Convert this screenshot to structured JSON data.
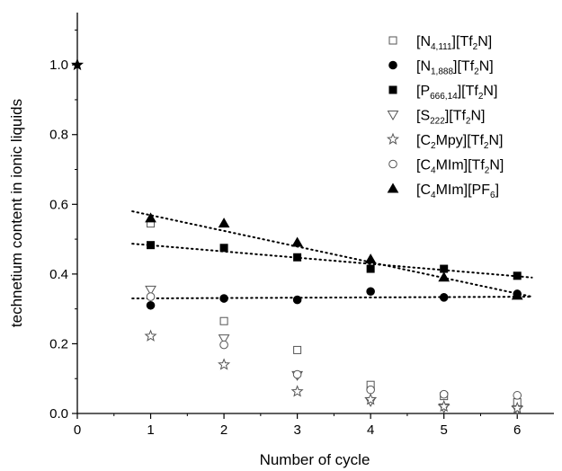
{
  "chart_data": {
    "type": "scatter",
    "title": "",
    "xlabel": "Number of cycle",
    "ylabel": "technetium content in ionic liquids",
    "xlim": [
      0,
      6.5
    ],
    "ylim": [
      0,
      1.15
    ],
    "xticks": [
      "0",
      "1",
      "2",
      "3",
      "4",
      "5",
      "6"
    ],
    "yticks": [
      "0.0",
      "0.2",
      "0.4",
      "0.6",
      "0.8",
      "1.0"
    ],
    "grid": false,
    "legend_position": "top-right",
    "origin_point": {
      "x": 0,
      "y": 1.0,
      "marker": "star-filled"
    },
    "series": [
      {
        "label_parts": [
          [
            "[N",
            ""
          ],
          [
            "4,111",
            "sub"
          ],
          [
            "][Tf",
            ""
          ],
          [
            "2",
            "sub"
          ],
          [
            "N]",
            ""
          ]
        ],
        "marker": "square-open",
        "x": [
          1,
          2,
          3,
          4,
          5,
          6
        ],
        "y": [
          0.545,
          0.265,
          0.182,
          0.082,
          0.05,
          0.032
        ]
      },
      {
        "label_parts": [
          [
            "[N",
            ""
          ],
          [
            "1,888",
            "sub"
          ],
          [
            "][Tf",
            ""
          ],
          [
            "2",
            "sub"
          ],
          [
            "N]",
            ""
          ]
        ],
        "marker": "circle-filled",
        "x": [
          1,
          2,
          3,
          4,
          5,
          6
        ],
        "y": [
          0.31,
          0.33,
          0.326,
          0.35,
          0.333,
          0.343
        ]
      },
      {
        "label_parts": [
          [
            "[P",
            ""
          ],
          [
            "666,14",
            "sub"
          ],
          [
            "][Tf",
            ""
          ],
          [
            "2",
            "sub"
          ],
          [
            "N]",
            ""
          ]
        ],
        "marker": "square-filled",
        "x": [
          1,
          2,
          3,
          4,
          5,
          6
        ],
        "y": [
          0.483,
          0.475,
          0.448,
          0.415,
          0.415,
          0.395
        ]
      },
      {
        "label_parts": [
          [
            "[S",
            ""
          ],
          [
            "222",
            "sub"
          ],
          [
            "][Tf",
            ""
          ],
          [
            "2",
            "sub"
          ],
          [
            "N]",
            ""
          ]
        ],
        "marker": "triangle-down-open",
        "x": [
          1,
          2,
          3,
          4,
          5,
          6
        ],
        "y": [
          0.355,
          0.215,
          0.11,
          0.035,
          0.017,
          0.012
        ]
      },
      {
        "label_parts": [
          [
            "[C",
            ""
          ],
          [
            "2",
            "sub"
          ],
          [
            "Mpy][Tf",
            ""
          ],
          [
            "2",
            "sub"
          ],
          [
            "N]",
            ""
          ]
        ],
        "marker": "star-open",
        "x": [
          1,
          2,
          3,
          4,
          5,
          6
        ],
        "y": [
          0.222,
          0.14,
          0.063,
          0.04,
          0.02,
          0.015
        ]
      },
      {
        "label_parts": [
          [
            "[C",
            ""
          ],
          [
            "4",
            "sub"
          ],
          [
            "MIm][Tf",
            ""
          ],
          [
            "2",
            "sub"
          ],
          [
            "N]",
            ""
          ]
        ],
        "marker": "circle-open",
        "x": [
          1,
          2,
          3,
          4,
          5,
          6
        ],
        "y": [
          0.335,
          0.197,
          0.112,
          0.068,
          0.055,
          0.052
        ]
      },
      {
        "label_parts": [
          [
            "[C",
            ""
          ],
          [
            "4",
            "sub"
          ],
          [
            "MIm][PF",
            ""
          ],
          [
            "6",
            "sub"
          ],
          [
            "]",
            ""
          ]
        ],
        "marker": "triangle-up-filled",
        "x": [
          1,
          2,
          3,
          4,
          5,
          6
        ],
        "y": [
          0.56,
          0.545,
          0.49,
          0.442,
          0.39,
          0.338
        ]
      }
    ],
    "trend_lines": [
      {
        "x": [
          0.75,
          6.2
        ],
        "y": [
          0.58,
          0.335
        ]
      },
      {
        "x": [
          0.75,
          6.2
        ],
        "y": [
          0.487,
          0.39
        ]
      },
      {
        "x": [
          0.75,
          6.2
        ],
        "y": [
          0.33,
          0.335
        ]
      }
    ]
  }
}
